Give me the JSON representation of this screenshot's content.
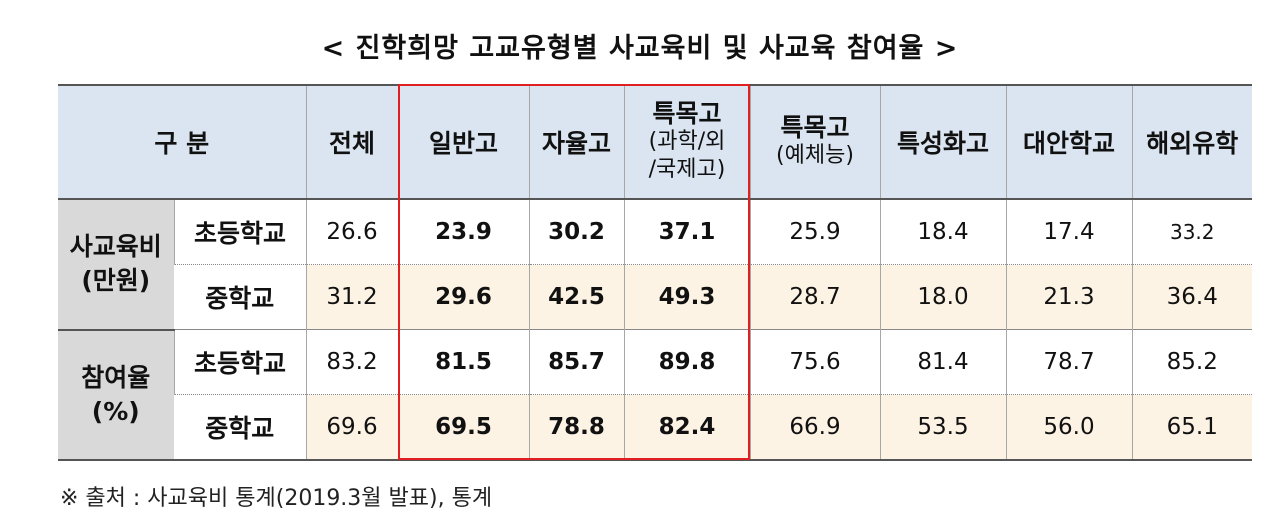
{
  "title": "< 진학희망 고교유형별 사교육비 및 사교육 참여율 >",
  "header": {
    "group": "구 분",
    "total": "전체",
    "general": "일반고",
    "autonomous": "자율고",
    "special_line1": "특목고",
    "special_line2": "(과학/외",
    "special_line3": "/국제고)",
    "arts_line1": "특목고",
    "arts_line2": "(예체능)",
    "specialized": "특성화고",
    "alternative": "대안학교",
    "abroad": "해외유학"
  },
  "groups": {
    "cost_line1": "사교육비",
    "cost_line2": "(만원)",
    "rate_line1": "참여율",
    "rate_line2": "(%)"
  },
  "rows": [
    {
      "label": "초등학교",
      "values": [
        "26.6",
        "23.9",
        "30.2",
        "37.1",
        "25.9",
        "18.4",
        "17.4",
        "33.2"
      ]
    },
    {
      "label": "중학교",
      "values": [
        "31.2",
        "29.6",
        "42.5",
        "49.3",
        "28.7",
        "18.0",
        "21.3",
        "36.4"
      ]
    },
    {
      "label": "초등학교",
      "values": [
        "83.2",
        "81.5",
        "85.7",
        "89.8",
        "75.6",
        "81.4",
        "78.7",
        "85.2"
      ]
    },
    {
      "label": "중학교",
      "values": [
        "69.6",
        "69.5",
        "78.8",
        "82.4",
        "66.9",
        "53.5",
        "56.0",
        "65.1"
      ]
    }
  ],
  "note": "※ 출처 : 사교육비 통계(2019.3월 발표), 통계",
  "colors": {
    "header_bg": "#dbe5f1",
    "group_bg": "#d9d9d9",
    "alt_row_bg": "#fdf3e4",
    "highlight_border": "#e02020"
  }
}
